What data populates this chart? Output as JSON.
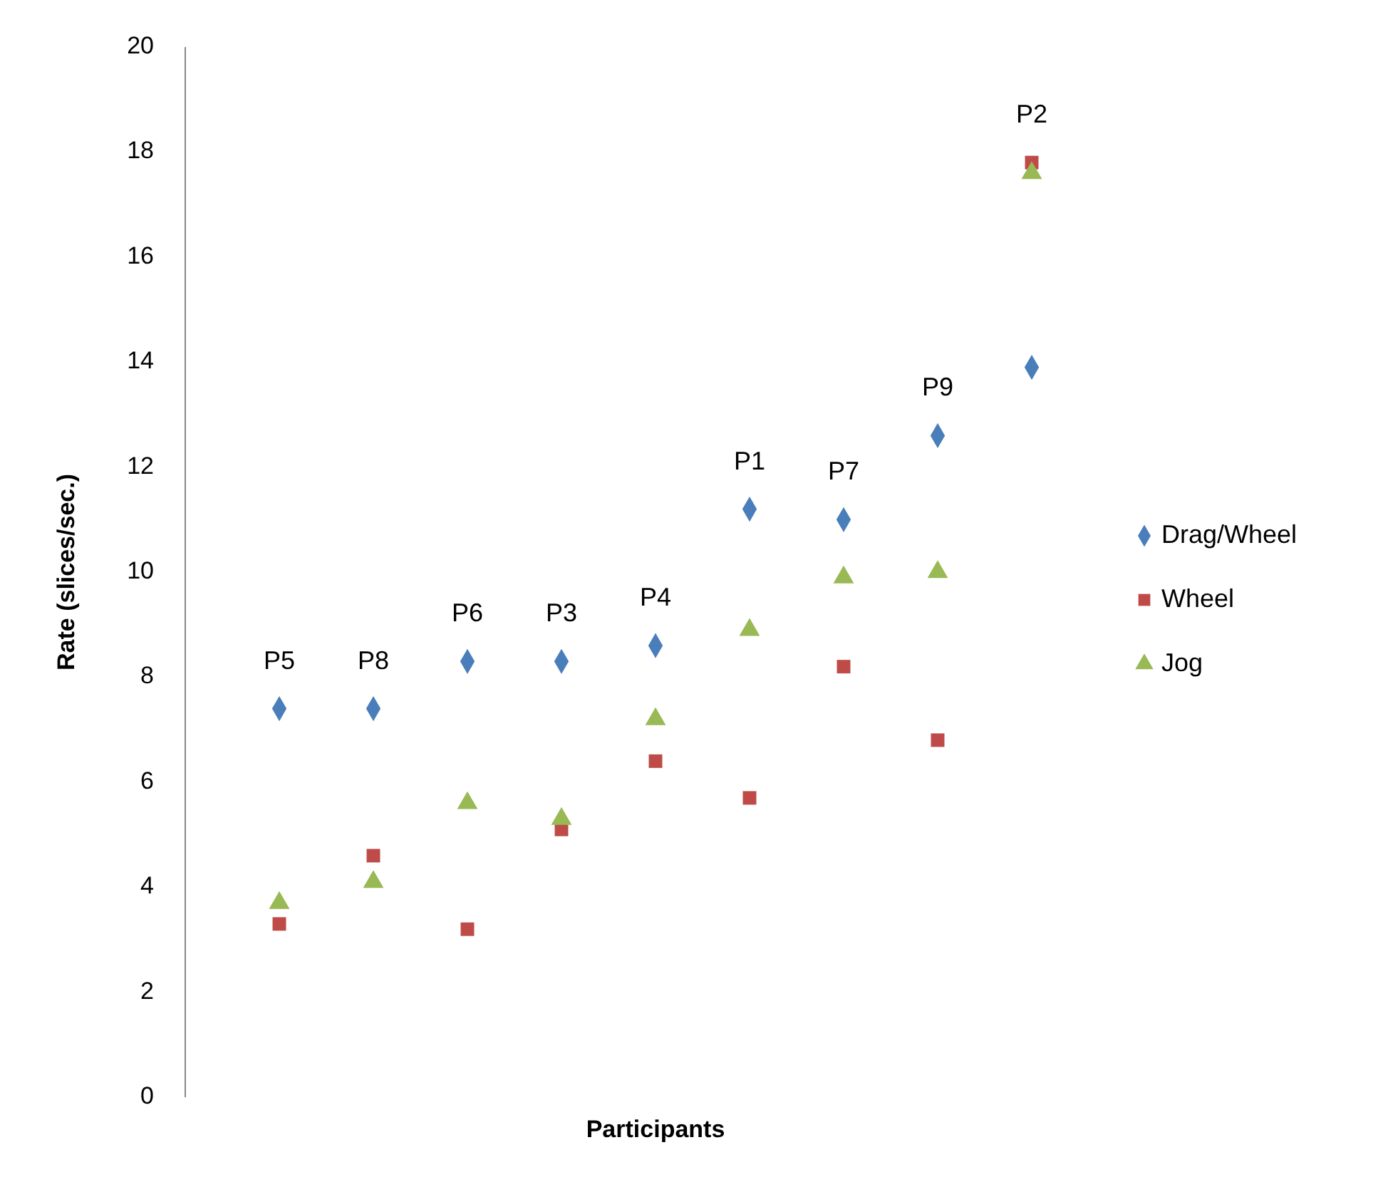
{
  "chart_data": {
    "type": "scatter",
    "xlabel": "Participants",
    "ylabel": "Rate (slices/sec.)",
    "categories": [
      "P5",
      "P8",
      "P6",
      "P3",
      "P4",
      "P1",
      "P7",
      "P9",
      "P2"
    ],
    "ylim": [
      0,
      20
    ],
    "yticks": [
      0,
      2,
      4,
      6,
      8,
      10,
      12,
      14,
      16,
      18,
      20
    ],
    "grid": false,
    "legend": "right",
    "series": [
      {
        "name": "Drag/Wheel",
        "color": "#4a7ebb",
        "marker": "diamond",
        "values": [
          7.4,
          7.4,
          8.3,
          8.3,
          8.6,
          11.2,
          11.0,
          12.6,
          13.9
        ]
      },
      {
        "name": "Wheel",
        "color": "#be4b48",
        "marker": "square",
        "values": [
          3.3,
          4.6,
          3.2,
          5.1,
          6.4,
          5.7,
          8.2,
          6.8,
          17.8
        ]
      },
      {
        "name": "Jog",
        "color": "#98b954",
        "marker": "triangle",
        "values": [
          3.7,
          4.1,
          5.6,
          5.3,
          7.2,
          8.9,
          9.9,
          10.0,
          17.6
        ]
      }
    ]
  }
}
